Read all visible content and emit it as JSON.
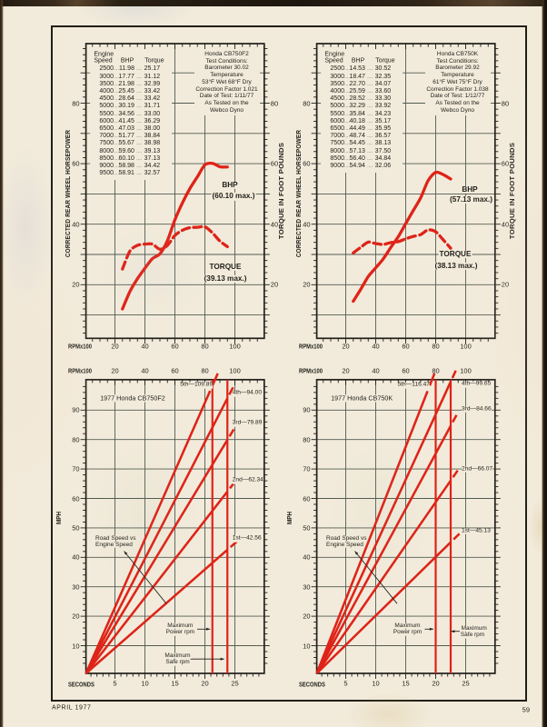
{
  "page": {
    "footer_left": "APRIL 1977",
    "page_number": "59",
    "paper_color": "#f2ebdb",
    "ink_color": "#201f1a",
    "grid_color": "#525b52",
    "accent_red": "#df2318"
  },
  "chart_data": [
    {
      "id": "dyno-cb750f2",
      "type": "line",
      "title": "Honda CB750F2",
      "xlabel": "RPMx100",
      "ylabel_left": "CORRECTED REAR WHEEL HORSEPOWER",
      "ylabel_right": "TORQUE IN FOOT POUNDS",
      "x_ticks": [
        20,
        40,
        60,
        80,
        100
      ],
      "y_ticks_left": [
        20,
        40,
        60,
        80
      ],
      "y_ticks_right": [
        20,
        40,
        60,
        80
      ],
      "x_range": [
        0.6,
        119.6
      ],
      "y_range": [
        2.3,
        99.7
      ],
      "grid": true,
      "table": {
        "header_line1": "Engine",
        "header_line2": [
          "Speed",
          "BHP",
          "Torque"
        ],
        "dot_leader": "....",
        "rows": [
          [
            "2500",
            "11.98",
            "25.17"
          ],
          [
            "3000",
            "17.77",
            "31.12"
          ],
          [
            "3500",
            "21.98",
            "32.99"
          ],
          [
            "4000",
            "25.45",
            "33.42"
          ],
          [
            "4500",
            "28.64",
            "33.42"
          ],
          [
            "5000",
            "30.19",
            "31.71"
          ],
          [
            "5500",
            "34.56",
            "33.00"
          ],
          [
            "6000",
            "41.45",
            "36.29"
          ],
          [
            "6500",
            "47.03",
            "38.00"
          ],
          [
            "7000",
            "51.77",
            "38.84"
          ],
          [
            "7500",
            "55.67",
            "38.98"
          ],
          [
            "8000",
            "59.60",
            "39.13"
          ],
          [
            "8500",
            "60.10",
            "37.13"
          ],
          [
            "9000",
            "58.98",
            "34.42"
          ],
          [
            "9500",
            "58.91",
            "32.57"
          ]
        ]
      },
      "conditions": [
        "Honda CB750F2",
        "Test Conditions:",
        "Barometer 30.02",
        "Temperature",
        "53°F Wet 68°F Dry",
        "Correction Factor 1.021",
        "Date of Test: 1/11/77",
        "As Tested on the",
        "Webco Dyno"
      ],
      "series": [
        {
          "name": "BHP",
          "style": "solid",
          "label": "BHP",
          "sublabel": "(60.10 max.)",
          "x": [
            25,
            30,
            35,
            40,
            45,
            50,
            55,
            60,
            65,
            70,
            75,
            80,
            85,
            90,
            95
          ],
          "y": [
            11.98,
            17.77,
            21.98,
            25.45,
            28.64,
            30.19,
            34.56,
            41.45,
            47.03,
            51.77,
            55.67,
            59.6,
            60.1,
            58.98,
            58.91
          ]
        },
        {
          "name": "TORQUE",
          "style": "dashed",
          "label": "TORQUE",
          "sublabel": "(39.13 max.)",
          "x": [
            25,
            30,
            35,
            40,
            45,
            50,
            55,
            60,
            65,
            70,
            75,
            80,
            85,
            90,
            95
          ],
          "y": [
            25.17,
            31.12,
            32.99,
            33.42,
            33.42,
            31.71,
            33.0,
            36.29,
            38.0,
            38.84,
            38.98,
            39.13,
            37.13,
            34.42,
            32.57
          ]
        }
      ]
    },
    {
      "id": "dyno-cb750k",
      "type": "line",
      "title": "Honda CB750K",
      "xlabel": "RPMx100",
      "ylabel_left": "CORRECTED REAR WHEEL HORSEPOWER",
      "ylabel_right": "TORQUE IN FOOT POUNDS",
      "x_ticks": [
        20,
        40,
        60,
        80,
        100
      ],
      "y_ticks_left": [
        20,
        40,
        60,
        80
      ],
      "y_ticks_right": [
        20,
        40,
        60,
        80
      ],
      "x_range": [
        0.6,
        119.6
      ],
      "y_range": [
        2.3,
        99.7
      ],
      "grid": true,
      "table": {
        "header_line1": "Engine",
        "header_line2": [
          "Speed",
          "BHP",
          "Torque"
        ],
        "dot_leader": "....",
        "rows": [
          [
            "2500",
            "14.53",
            "30.52"
          ],
          [
            "3000",
            "18.47",
            "32.35"
          ],
          [
            "3500",
            "22.70",
            "34.07"
          ],
          [
            "4000",
            "25.59",
            "33.60"
          ],
          [
            "4500",
            "28.52",
            "33.30"
          ],
          [
            "5000",
            "32.29",
            "33.92"
          ],
          [
            "5500",
            "35.84",
            "34.23"
          ],
          [
            "6000",
            "40.18",
            "35.17"
          ],
          [
            "6500",
            "44.49",
            "35.95"
          ],
          [
            "7000",
            "48.74",
            "36.57"
          ],
          [
            "7500",
            "54.45",
            "38.13"
          ],
          [
            "8000",
            "57.13",
            "37.50"
          ],
          [
            "8500",
            "56.40",
            "34.84"
          ],
          [
            "9000",
            "54.94",
            "32.06"
          ]
        ]
      },
      "conditions": [
        "Honda CB750K",
        "Test Conditions:",
        "Barometer 29.92",
        "Temperature",
        "61°F Wet 75°F Dry",
        "Correction Factor 1.038",
        "Date of Test: 1/12/77",
        "As Tested on the",
        "Webco Dyno"
      ],
      "series": [
        {
          "name": "BHP",
          "style": "solid",
          "label": "BHP",
          "sublabel": "(57.13 max.)",
          "x": [
            25,
            30,
            35,
            40,
            45,
            50,
            55,
            60,
            65,
            70,
            75,
            80,
            85,
            90
          ],
          "y": [
            14.53,
            18.47,
            22.7,
            25.59,
            28.52,
            32.29,
            35.84,
            40.18,
            44.49,
            48.74,
            54.45,
            57.13,
            56.4,
            54.94
          ]
        },
        {
          "name": "TORQUE",
          "style": "dashed",
          "label": "TORQUE",
          "sublabel": "(38.13 max.)",
          "x": [
            25,
            30,
            35,
            40,
            45,
            50,
            55,
            60,
            65,
            70,
            75,
            80,
            85,
            90
          ],
          "y": [
            30.52,
            32.35,
            34.07,
            33.6,
            33.3,
            33.92,
            34.23,
            35.17,
            35.95,
            36.57,
            38.13,
            37.5,
            34.84,
            32.06
          ]
        }
      ]
    },
    {
      "id": "gears-cb750f2",
      "type": "line",
      "title": "1977 Honda CB750F2",
      "top_xlabel": "RPMx100",
      "xlabel": "SECONDS",
      "ylabel": "MPH",
      "top_x_ticks": [
        20,
        40,
        60,
        80,
        100
      ],
      "x_ticks": [
        5,
        10,
        15,
        20,
        25
      ],
      "y_ticks": [
        10,
        20,
        30,
        40,
        50,
        60,
        70,
        80,
        90
      ],
      "grid": true,
      "max_power_rpm": 85,
      "max_safe_rpm": 95,
      "gears": [
        {
          "name": "1st",
          "top_speed_mph": 42.56,
          "label": "1st—42.56"
        },
        {
          "name": "2nd",
          "top_speed_mph": 62.34,
          "label": "2nd—62.34"
        },
        {
          "name": "3rd",
          "top_speed_mph": 79.89,
          "label": "3rd—79.89"
        },
        {
          "name": "4th",
          "top_speed_mph": 94.0,
          "label": "4th—94.00"
        },
        {
          "name": "5th",
          "top_speed_mph": 109.89,
          "label": "5th—109.89"
        }
      ],
      "annotation": [
        "Road Speed vs",
        "Engine Speed"
      ],
      "power_label": [
        "Maximum",
        "Power rpm"
      ],
      "safe_label": [
        "Maximum",
        "Safe rpm"
      ]
    },
    {
      "id": "gears-cb750k",
      "type": "line",
      "title": "1977 Honda CB750K",
      "top_xlabel": "RPMx100",
      "xlabel": "SECONDS",
      "ylabel": "MPH",
      "top_x_ticks": [
        20,
        40,
        60,
        80,
        100
      ],
      "x_ticks": [
        5,
        10,
        15,
        20,
        25
      ],
      "y_ticks": [
        10,
        20,
        30,
        40,
        50,
        60,
        70,
        80,
        90
      ],
      "grid": true,
      "max_power_rpm": 80,
      "max_safe_rpm": 90,
      "gears": [
        {
          "name": "1st",
          "top_speed_mph": 45.13,
          "label": "1st—45.13"
        },
        {
          "name": "2nd",
          "top_speed_mph": 66.07,
          "label": "2nd—66.07"
        },
        {
          "name": "3rd",
          "top_speed_mph": 84.66,
          "label": "3rd—84.66"
        },
        {
          "name": "4th",
          "top_speed_mph": 99.65,
          "label": "4th—99.65"
        },
        {
          "name": "5th",
          "top_speed_mph": 116.47,
          "label": "5th—116.47"
        }
      ],
      "annotation": [
        "Road Speed vs",
        "Engine Speed"
      ],
      "power_label": [
        "Maximum",
        "Power rpm"
      ],
      "safe_label": [
        "Maximum",
        "Safe rpm"
      ]
    }
  ]
}
